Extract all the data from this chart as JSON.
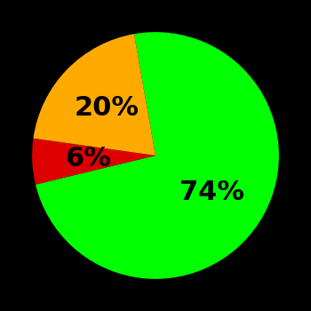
{
  "slices": [
    74,
    6,
    20
  ],
  "labels": [
    "74%",
    "6%",
    "20%"
  ],
  "colors": [
    "#00ff00",
    "#dd0000",
    "#ffaa00"
  ],
  "background_color": "#000000",
  "startangle": 100,
  "label_fontsize": 22,
  "label_fontweight": "bold",
  "label_color": "#000000",
  "label_radii": [
    0.55,
    0.55,
    0.55
  ]
}
